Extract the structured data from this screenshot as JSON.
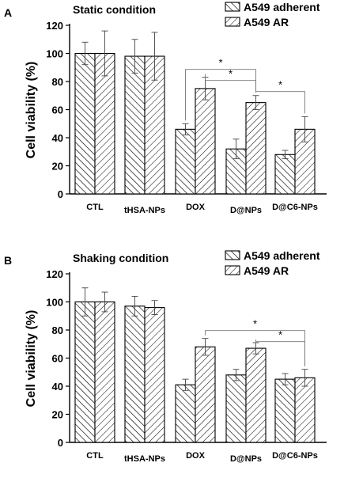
{
  "chart_data": [
    {
      "type": "bar",
      "panel_label": "A",
      "title": "Static condition",
      "ylabel": "Cell viability (%)",
      "ylim": [
        0,
        120
      ],
      "yticks": [
        0,
        20,
        40,
        60,
        80,
        100,
        120
      ],
      "categories": [
        "CTL",
        "tHSA-NPs",
        "DOX",
        "D@NPs",
        "D@C6-NPs"
      ],
      "legend_position": "top-right",
      "series": [
        {
          "name": "A549 adherent",
          "values": [
            100,
            98,
            46,
            32,
            28
          ],
          "errors": [
            8,
            12,
            4,
            7,
            3
          ]
        },
        {
          "name": "A549 AR",
          "values": [
            100,
            98,
            75,
            65,
            46
          ],
          "errors": [
            16,
            17,
            8,
            5,
            9
          ]
        }
      ],
      "significance": [
        {
          "from": [
            2,
            0
          ],
          "to": [
            3,
            1
          ],
          "label": "*"
        },
        {
          "from": [
            2,
            1
          ],
          "to": [
            3,
            1
          ],
          "label": "*"
        },
        {
          "from": [
            3,
            1
          ],
          "to": [
            4,
            1
          ],
          "label": "*"
        }
      ]
    },
    {
      "type": "bar",
      "panel_label": "B",
      "title": "Shaking condition",
      "ylabel": "Cell viability (%)",
      "ylim": [
        0,
        120
      ],
      "yticks": [
        0,
        20,
        40,
        60,
        80,
        100,
        120
      ],
      "categories": [
        "CTL",
        "tHSA-NPs",
        "DOX",
        "D@NPs",
        "D@C6-NPs"
      ],
      "legend_position": "top-right",
      "series": [
        {
          "name": "A549 adherent",
          "values": [
            100,
            97,
            41,
            48,
            45
          ],
          "errors": [
            10,
            7,
            4,
            4,
            4
          ]
        },
        {
          "name": "A549 AR",
          "values": [
            100,
            96,
            68,
            67,
            46
          ],
          "errors": [
            7,
            5,
            6,
            4,
            6
          ]
        }
      ],
      "significance": [
        {
          "from": [
            2,
            1
          ],
          "to": [
            4,
            1
          ],
          "label": "*"
        },
        {
          "from": [
            3,
            1
          ],
          "to": [
            4,
            1
          ],
          "label": "*"
        }
      ]
    }
  ]
}
